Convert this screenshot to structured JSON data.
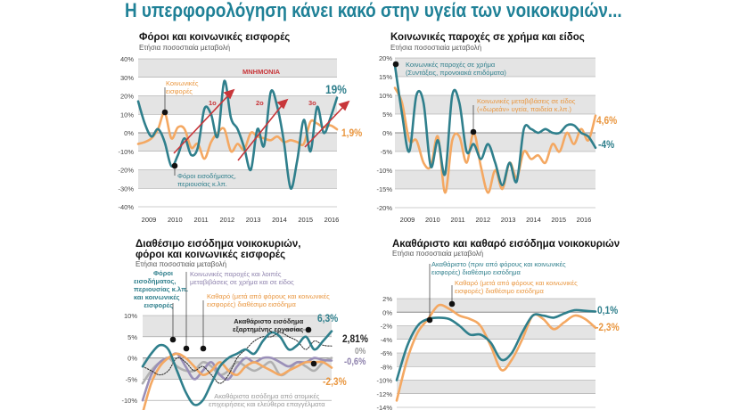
{
  "title": "Η υπερφορολόγηση κάνει κακό στην υγεία των νοικοκυριών...",
  "colors": {
    "teal": "#2f7f8c",
    "orange": "#f4a862",
    "purple": "#9a8fb8",
    "grey": "#b0b0b0",
    "black": "#222222",
    "arrow": "#c8363a",
    "band": "#e4e4e4"
  },
  "chart_data": [
    {
      "type": "line",
      "title": "Φόροι και κοινωνικές εισφορές",
      "subtitle": "Ετήσια ποσοστιαία μεταβολή",
      "ylim": [
        -40,
        40
      ],
      "yticks": [
        40,
        30,
        20,
        10,
        0,
        -10,
        -20,
        -30,
        -40
      ],
      "ytick_labels": [
        "40%",
        "30%",
        "20%",
        "10%",
        "0%",
        "-10%",
        "-20%",
        "-30%",
        "-40%"
      ],
      "xtick_labels": [
        "2009",
        "2010",
        "2011",
        "2012",
        "2013",
        "2014",
        "2015",
        "2016"
      ],
      "series": [
        {
          "name": "Κοινωνικές εισφορές",
          "color": "orange",
          "values": [
            -6,
            -5,
            -3,
            2,
            11,
            -3,
            3,
            2,
            -8,
            -6,
            -14,
            -5,
            0,
            2,
            -10,
            -6,
            -9,
            0,
            -2,
            -3,
            -4,
            -2,
            -5,
            -4,
            -5,
            -6,
            6,
            5,
            3,
            4,
            1.9
          ]
        },
        {
          "name": "Φόροι εισοδήματος, περιουσίας κ.λπ.",
          "color": "teal",
          "values": [
            17,
            5,
            -2,
            2,
            -5,
            -18,
            -12,
            -3,
            -12,
            -8,
            13,
            10,
            -2,
            28,
            8,
            2,
            -8,
            -20,
            2,
            -7,
            22,
            14,
            -5,
            -30,
            -15,
            7,
            -10,
            14,
            0,
            8,
            19
          ]
        }
      ],
      "annotations": {
        "period": "ΜΝΗΜΟΝΙΑ",
        "m1": "1ο",
        "m2": "2ο",
        "m3": "3ο",
        "end_teal": "19%",
        "end_orange": "1,9%"
      }
    },
    {
      "type": "line",
      "title": "Κοινωνικές παροχές σε χρήμα και είδος",
      "subtitle": "Ετήσια ποσοστιαία μεταβολή",
      "ylim": [
        -20,
        20
      ],
      "yticks": [
        20,
        15,
        10,
        5,
        0,
        -5,
        -10,
        -15,
        -20
      ],
      "ytick_labels": [
        "20%",
        "15%",
        "10%",
        "5%",
        "0%",
        "-5%",
        "-10%",
        "-15%",
        "-20%"
      ],
      "xtick_labels": [
        "2009",
        "2010",
        "2011",
        "2012",
        "2013",
        "2014",
        "2015",
        "2016"
      ],
      "series": [
        {
          "name": "Κοινωνικές μεταβιβάσεις σε είδος («δωρεάν» υγεία, παιδεία κ.λπ.)",
          "color": "orange",
          "values": [
            12,
            8,
            -2,
            -2,
            -8,
            -9,
            -1,
            -16,
            -2,
            -1,
            -8,
            0,
            -9,
            -16,
            -10,
            -15,
            -8,
            -12,
            -5,
            -7,
            -6,
            -8,
            -3,
            -5,
            0,
            -3,
            1,
            -2,
            4.6
          ]
        },
        {
          "name": "Κοινωνικές παροχές σε χρήμα (Συντάξεις, προνοιακά επιδόματα)",
          "color": "teal",
          "values": [
            18,
            5,
            -5,
            10,
            8,
            -9,
            -2,
            -11,
            10,
            8,
            -5,
            -3,
            -7,
            -3,
            -8,
            -14,
            -8,
            -13,
            1,
            1,
            0,
            1,
            0,
            0,
            2,
            2,
            0,
            -1,
            -4
          ]
        }
      ],
      "annotations": {
        "end_orange": "4,6%",
        "end_teal": "-4%"
      }
    },
    {
      "type": "line",
      "title": "Διαθέσιμο εισόδημα νοικοκυριών, φόροι και κοινωνικές εισφορές",
      "subtitle": "Ετήσια ποσοστιαία μεταβολή",
      "ylim": [
        -15,
        10
      ],
      "yticks": [
        10,
        5,
        0,
        -5,
        -10
      ],
      "ytick_labels": [
        "10%",
        "5%",
        "0%",
        "-5%",
        "-10%"
      ],
      "series": [
        {
          "name": "Ακαθάριστα εισόδημα από ατομικές επιχειρήσεις και ελεύθερα επαγγέλματα",
          "color": "grey",
          "values": [
            -6,
            -3,
            -1,
            0,
            -2,
            -3,
            -3,
            -1,
            -2,
            -4,
            -3,
            -1,
            -2,
            -3,
            -2,
            -1,
            -4,
            -3,
            -1,
            -2,
            -3,
            -1,
            0
          ]
        },
        {
          "name": "Κοινωνικές παροχές και λοιπές μεταβιβάσεις σε χρήμα και σε είδος",
          "color": "purple",
          "values": [
            -10,
            -4,
            -1,
            0,
            1,
            -2,
            -5,
            -3,
            -1,
            -4,
            -5,
            -2,
            0,
            -1,
            0,
            0,
            -1,
            -2,
            -1,
            -1,
            0,
            -0.5,
            -0.6
          ]
        },
        {
          "name": "Καθαρό (μετά από φόρους και κοινωνικές εισφορές) διαθέσιμο εισόδημα",
          "color": "orange",
          "values": [
            -13,
            -6,
            -2,
            0,
            1,
            0,
            -2,
            -4,
            -3,
            -1,
            -3,
            -4,
            -2,
            -1,
            -2,
            -3,
            -4,
            -3,
            -2,
            -1,
            -1,
            -1,
            -2.3
          ]
        },
        {
          "name": "Ακαθάριστο εισόδημα εξαρτημένης εργασίας",
          "color": "black",
          "dashed": true,
          "values": [
            -2,
            -3,
            -4,
            -3,
            0,
            -1,
            -3,
            -2,
            -4,
            -6,
            -4,
            0,
            2,
            4,
            5,
            5,
            6,
            5,
            4,
            2,
            4,
            3,
            2.81
          ]
        },
        {
          "name": "Φόροι εισοδήματος, περιουσίας κ.λπ. και κοινωνικές εισφορές",
          "color": "teal",
          "values": [
            -2,
            1,
            3,
            2,
            -3,
            -8,
            -11,
            -10,
            -6,
            -2,
            0,
            1,
            2,
            1,
            4,
            6,
            5,
            2,
            3,
            5,
            2,
            4,
            6.3
          ]
        }
      ],
      "annotations": {
        "end_teal": "6,3%",
        "end_black": "2,81%",
        "end_grey": "0%",
        "end_purple": "-0,6%",
        "end_orange": "-2,3%"
      }
    },
    {
      "type": "line",
      "title": "Ακαθάριστο και καθαρό εισόδημα νοικοκυριών",
      "subtitle": "Ετήσια ποσοστιαία μεταβολή",
      "ylim": [
        -14,
        2
      ],
      "yticks": [
        2,
        0,
        -2,
        -4,
        -6,
        -8,
        -10,
        -12,
        -14
      ],
      "ytick_labels": [
        "2%",
        "0%",
        "-2%",
        "-4%",
        "-6%",
        "-8%",
        "-10%",
        "-12%",
        "-14%"
      ],
      "series": [
        {
          "name": "Καθαρό (μετά από φόρους και κοινωνικές εισφορές) διαθέσιμο εισόδημα",
          "color": "orange",
          "values": [
            -13,
            -7,
            -3,
            -1,
            1,
            0.5,
            -0.5,
            -1,
            -2,
            -5,
            -8.5,
            -7,
            -4,
            -0.5,
            -1,
            -2.5,
            -1.5,
            -0.5,
            -1,
            -2.3
          ]
        },
        {
          "name": "Ακαθάριστο (πριν από φόρους και κοινωνικές εισφορές) διαθέσιμο εισόδημα",
          "color": "teal",
          "values": [
            -10,
            -5,
            -2,
            -1,
            -0.8,
            -1,
            -2,
            -3.3,
            -3.3,
            -4.5,
            -7,
            -6,
            -3,
            -0.5,
            -0.5,
            -0.8,
            -0.2,
            0.3,
            0.2,
            0.1
          ]
        }
      ],
      "annotations": {
        "end_teal": "0,1%",
        "end_orange": "-2,3%"
      }
    }
  ],
  "labels": {
    "c1_orange": "Κοινωνικές\nεισφορές",
    "c1_teal": "Φόροι εισοδήματος,\nπεριουσίας κ.λπ.",
    "c2_teal": "Κοινωνικές παροχές σε χρήμα\n(Συντάξεις, προνοιακά επιδόματα)",
    "c2_orange": "Κοινωνικές μεταβιβάσεις σε είδος\n(«δωρεάν» υγεία, παιδεία κ.λπ.)",
    "c3_teal": "Φόροι\nεισοδήματος,\nπεριουσίας κ.λπ.\nκαι κοινωνικές\nεισφορές",
    "c3_purple": "Κοινωνικές παροχές και λοιπές\nμεταβιβάσεις σε χρήμα και σε είδος",
    "c3_orange": "Καθαρό (μετά από φόρους και κοινωνικές\nεισφορές) διαθέσιμο εισόδημα",
    "c3_black": "Ακαθάριστο εισόδημα\nεξαρτημένης εργασίας",
    "c3_grey": "Ακαθάριστα εισόδημα από ατομικές\nεπιχειρήσεις και ελεύθερα επαγγέλματα",
    "c4_teal": "Ακαθάριστο (πριν από φόρους και κοινωνικές\nεισφορές) διαθέσιμο εισόδημα",
    "c4_orange": "Καθαρό (μετά από φόρους και κοινωνικές\nεισφορές) διαθέσιμο εισόδημα"
  }
}
